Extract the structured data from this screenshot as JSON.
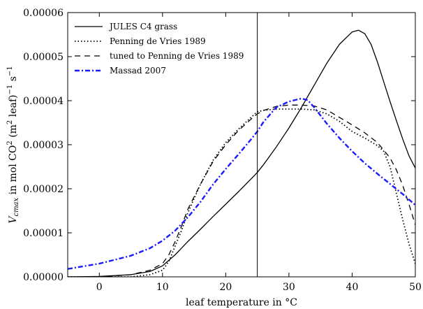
{
  "chart_data": {
    "type": "line",
    "title": "",
    "xlabel": "leaf temperature in °C",
    "ylabel_parts": {
      "var": "V",
      "var_sub": "cmax",
      "text1": " in mol CO",
      "sup1": "2",
      "text2": " (m",
      "sup2": "2",
      "text3": " leaf)",
      "sup3": "−1",
      "text4": " s",
      "sup4": "−1"
    },
    "xlim": [
      -5,
      50
    ],
    "ylim": [
      0,
      6e-05
    ],
    "xticks": [
      0,
      10,
      20,
      30,
      40,
      50
    ],
    "xtick_labels": [
      "0",
      "10",
      "20",
      "30",
      "40",
      "50"
    ],
    "yticks": [
      0,
      1e-05,
      2e-05,
      3e-05,
      4e-05,
      5e-05,
      6e-05
    ],
    "ytick_labels": [
      "0.00000",
      "0.00001",
      "0.00002",
      "0.00003",
      "0.00004",
      "0.00005",
      "0.00006"
    ],
    "vline_x": 25,
    "legend_position": "top-left",
    "grid": false,
    "series": [
      {
        "name": "JULES C4 grass",
        "color": "#000000",
        "dash": "solid",
        "x": [
          -5,
          0,
          5,
          8,
          10,
          12,
          14,
          16,
          18,
          20,
          22,
          24,
          25,
          26,
          28,
          30,
          32,
          34,
          36,
          38,
          40,
          41,
          42,
          43,
          44,
          45,
          46,
          47,
          48,
          49,
          50
        ],
        "y": [
          0,
          1e-07,
          5e-07,
          1.2e-06,
          2.5e-06,
          5e-06,
          8e-06,
          1.08e-05,
          1.37e-05,
          1.65e-05,
          1.93e-05,
          2.22e-05,
          2.37e-05,
          2.55e-05,
          2.95e-05,
          3.38e-05,
          3.85e-05,
          4.35e-05,
          4.85e-05,
          5.28e-05,
          5.56e-05,
          5.6e-05,
          5.52e-05,
          5.28e-05,
          4.88e-05,
          4.43e-05,
          3.98e-05,
          3.55e-05,
          3.13e-05,
          2.75e-05,
          2.47e-05
        ]
      },
      {
        "name": "Penning de Vries 1989",
        "color": "#000000",
        "dash": "dotted",
        "x": [
          -5,
          0,
          5,
          8,
          10,
          11,
          12,
          13,
          14,
          16,
          18,
          20,
          22,
          24,
          25,
          26,
          28,
          30,
          32,
          34,
          36,
          38,
          40,
          42,
          44,
          45,
          46,
          47,
          48,
          49,
          50
        ],
        "y": [
          0,
          0,
          0,
          5e-07,
          1.5e-06,
          3.5e-06,
          7e-06,
          1.05e-05,
          1.45e-05,
          2.1e-05,
          2.65e-05,
          3.05e-05,
          3.35e-05,
          3.62e-05,
          3.75e-05,
          3.78e-05,
          3.81e-05,
          3.81e-05,
          3.81e-05,
          3.79e-05,
          3.7e-05,
          3.53e-05,
          3.3e-05,
          3.15e-05,
          2.98e-05,
          2.85e-05,
          2.5e-05,
          1.9e-05,
          1.3e-05,
          7.5e-06,
          3e-06
        ]
      },
      {
        "name": "tuned to Penning de Vries 1989",
        "color": "#000000",
        "dash": "dashed",
        "x": [
          -5,
          0,
          5,
          8,
          10,
          11,
          12,
          13,
          14,
          16,
          18,
          20,
          22,
          24,
          25,
          26,
          28,
          30,
          32,
          34,
          36,
          38,
          40,
          42,
          44,
          46,
          47,
          48,
          49,
          50
        ],
        "y": [
          0,
          0,
          5e-07,
          1.5e-06,
          3e-06,
          5e-06,
          8e-06,
          1.15e-05,
          1.53e-05,
          2.1e-05,
          2.62e-05,
          3e-05,
          3.32e-05,
          3.58e-05,
          3.7e-05,
          3.78e-05,
          3.87e-05,
          3.9e-05,
          3.9e-05,
          3.88e-05,
          3.79e-05,
          3.62e-05,
          3.45e-05,
          3.27e-05,
          3.05e-05,
          2.7e-05,
          2.43e-05,
          2.08e-05,
          1.65e-05,
          1.18e-05
        ]
      },
      {
        "name": "Massad 2007",
        "color": "#1a1aff",
        "dash": "dashdot",
        "x": [
          -5,
          0,
          5,
          8,
          10,
          12,
          14,
          16,
          18,
          20,
          22,
          24,
          25,
          26,
          28,
          30,
          32,
          33,
          34,
          36,
          38,
          40,
          42,
          44,
          46,
          48,
          50
        ],
        "y": [
          1.8e-06,
          3e-06,
          4.8e-06,
          6.5e-06,
          8.2e-06,
          1.05e-05,
          1.35e-05,
          1.7e-05,
          2.1e-05,
          2.45e-05,
          2.78e-05,
          3.12e-05,
          3.3e-05,
          3.52e-05,
          3.85e-05,
          3.98e-05,
          4.05e-05,
          4.01e-05,
          3.85e-05,
          3.48e-05,
          3.15e-05,
          2.85e-05,
          2.58e-05,
          2.34e-05,
          2.11e-05,
          1.88e-05,
          1.63e-05
        ]
      }
    ]
  }
}
